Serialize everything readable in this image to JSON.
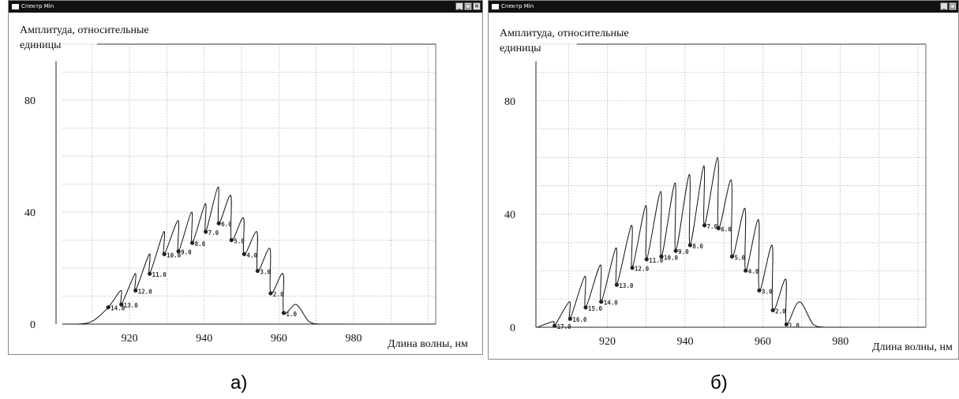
{
  "panels": [
    {
      "window_title": "Спектр Min",
      "caption": "а)",
      "ylabel_line1": "Амплитуда, относительные",
      "ylabel_line2": "единицы",
      "xlabel": "Длина волны, нм"
    },
    {
      "window_title": "Спектр Min",
      "caption": "б)",
      "ylabel_line1": "Амплитуда, относительные",
      "ylabel_line2": "единицы",
      "xlabel": "Длина волны, нм"
    }
  ],
  "chart_data": [
    {
      "type": "line",
      "title": "",
      "xlabel": "Длина волны, нм",
      "ylabel": "Амплитуда, относительные единицы",
      "xlim": [
        902,
        1002
      ],
      "ylim": [
        0,
        100
      ],
      "x_ticks": [
        920,
        940,
        960,
        980
      ],
      "y_ticks": [
        0,
        40,
        80
      ],
      "grid": true,
      "peaks": [
        {
          "x": 910,
          "y": 1
        },
        {
          "x": 917.7,
          "y": 12
        },
        {
          "x": 921.5,
          "y": 18
        },
        {
          "x": 925.3,
          "y": 25
        },
        {
          "x": 929.2,
          "y": 33
        },
        {
          "x": 933.0,
          "y": 37
        },
        {
          "x": 936.6,
          "y": 40
        },
        {
          "x": 940.3,
          "y": 43
        },
        {
          "x": 943.7,
          "y": 49
        },
        {
          "x": 947.1,
          "y": 46
        },
        {
          "x": 950.5,
          "y": 38
        },
        {
          "x": 954.1,
          "y": 33
        },
        {
          "x": 957.6,
          "y": 27
        },
        {
          "x": 961.1,
          "y": 18
        },
        {
          "x": 964.6,
          "y": 7
        },
        {
          "x": 968,
          "y": 1
        }
      ],
      "marked_points": [
        {
          "x": 914.3,
          "y": 6,
          "label": "14.0"
        },
        {
          "x": 917.8,
          "y": 7,
          "label": "13.0"
        },
        {
          "x": 921.6,
          "y": 12,
          "label": "12.0"
        },
        {
          "x": 925.4,
          "y": 18,
          "label": "11.0"
        },
        {
          "x": 929.3,
          "y": 25,
          "label": "10.0"
        },
        {
          "x": 933.1,
          "y": 26,
          "label": "9.0"
        },
        {
          "x": 936.8,
          "y": 29,
          "label": "8.0"
        },
        {
          "x": 940.4,
          "y": 33,
          "label": "7.0"
        },
        {
          "x": 943.9,
          "y": 36,
          "label": "6.0"
        },
        {
          "x": 947.3,
          "y": 30,
          "label": "5.0"
        },
        {
          "x": 950.7,
          "y": 25,
          "label": "4.0"
        },
        {
          "x": 954.3,
          "y": 19,
          "label": "3.0"
        },
        {
          "x": 957.8,
          "y": 11,
          "label": "2.0"
        },
        {
          "x": 961.3,
          "y": 4,
          "label": "1.0"
        }
      ]
    },
    {
      "type": "line",
      "title": "",
      "xlabel": "Длина волны, нм",
      "ylabel": "Амплитуда, относительные единицы",
      "xlim": [
        902,
        1002
      ],
      "ylim": [
        0,
        100
      ],
      "x_ticks": [
        920,
        940,
        960,
        980
      ],
      "y_ticks": [
        0,
        40,
        80
      ],
      "grid": true,
      "peaks": [
        {
          "x": 906,
          "y": 2
        },
        {
          "x": 910.2,
          "y": 9
        },
        {
          "x": 914.2,
          "y": 18
        },
        {
          "x": 918.2,
          "y": 22
        },
        {
          "x": 922.2,
          "y": 28
        },
        {
          "x": 926.2,
          "y": 36
        },
        {
          "x": 929.9,
          "y": 43
        },
        {
          "x": 933.7,
          "y": 48
        },
        {
          "x": 937.4,
          "y": 51
        },
        {
          "x": 941.1,
          "y": 54
        },
        {
          "x": 944.8,
          "y": 57
        },
        {
          "x": 948.4,
          "y": 60
        },
        {
          "x": 951.9,
          "y": 52
        },
        {
          "x": 955.4,
          "y": 42
        },
        {
          "x": 958.9,
          "y": 38
        },
        {
          "x": 962.4,
          "y": 29
        },
        {
          "x": 965.9,
          "y": 17
        },
        {
          "x": 969.4,
          "y": 9
        },
        {
          "x": 973,
          "y": 1
        }
      ],
      "marked_points": [
        {
          "x": 906.4,
          "y": 0.5,
          "label": "17.0"
        },
        {
          "x": 910.4,
          "y": 3,
          "label": "16.0"
        },
        {
          "x": 914.4,
          "y": 7,
          "label": "15.0"
        },
        {
          "x": 918.4,
          "y": 9,
          "label": "14.0"
        },
        {
          "x": 922.4,
          "y": 15,
          "label": "13.0"
        },
        {
          "x": 926.4,
          "y": 21,
          "label": "12.0"
        },
        {
          "x": 930.1,
          "y": 24,
          "label": "11.0"
        },
        {
          "x": 933.9,
          "y": 25,
          "label": "10.0"
        },
        {
          "x": 937.6,
          "y": 27,
          "label": "9.0"
        },
        {
          "x": 941.3,
          "y": 29,
          "label": "8.0"
        },
        {
          "x": 945.0,
          "y": 36,
          "label": "7.0"
        },
        {
          "x": 948.6,
          "y": 35,
          "label": "6.0"
        },
        {
          "x": 952.1,
          "y": 25,
          "label": "5.0"
        },
        {
          "x": 955.6,
          "y": 20,
          "label": "4.0"
        },
        {
          "x": 959.1,
          "y": 13,
          "label": "3.0"
        },
        {
          "x": 962.6,
          "y": 6,
          "label": "2.0"
        },
        {
          "x": 966.1,
          "y": 1,
          "label": "1.0"
        }
      ]
    }
  ]
}
